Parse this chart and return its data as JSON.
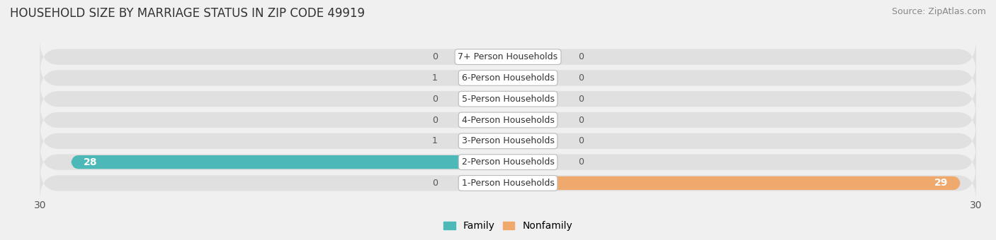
{
  "title": "HOUSEHOLD SIZE BY MARRIAGE STATUS IN ZIP CODE 49919",
  "source": "Source: ZipAtlas.com",
  "categories": [
    "1-Person Households",
    "2-Person Households",
    "3-Person Households",
    "4-Person Households",
    "5-Person Households",
    "6-Person Households",
    "7+ Person Households"
  ],
  "family_values": [
    0,
    28,
    1,
    0,
    0,
    1,
    0
  ],
  "nonfamily_values": [
    29,
    0,
    0,
    0,
    0,
    0,
    0
  ],
  "family_color": "#4db8b8",
  "nonfamily_color": "#f0a96c",
  "xlim": [
    -30,
    30
  ],
  "x_ticks": [
    -30,
    30
  ],
  "x_tick_labels": [
    "30",
    "30"
  ],
  "bg_bar_color": "#e0e0e0",
  "title_fontsize": 12,
  "source_fontsize": 9,
  "tick_fontsize": 10,
  "legend_fontsize": 10,
  "bar_label_fontsize": 9,
  "value_label_fontsize": 9
}
